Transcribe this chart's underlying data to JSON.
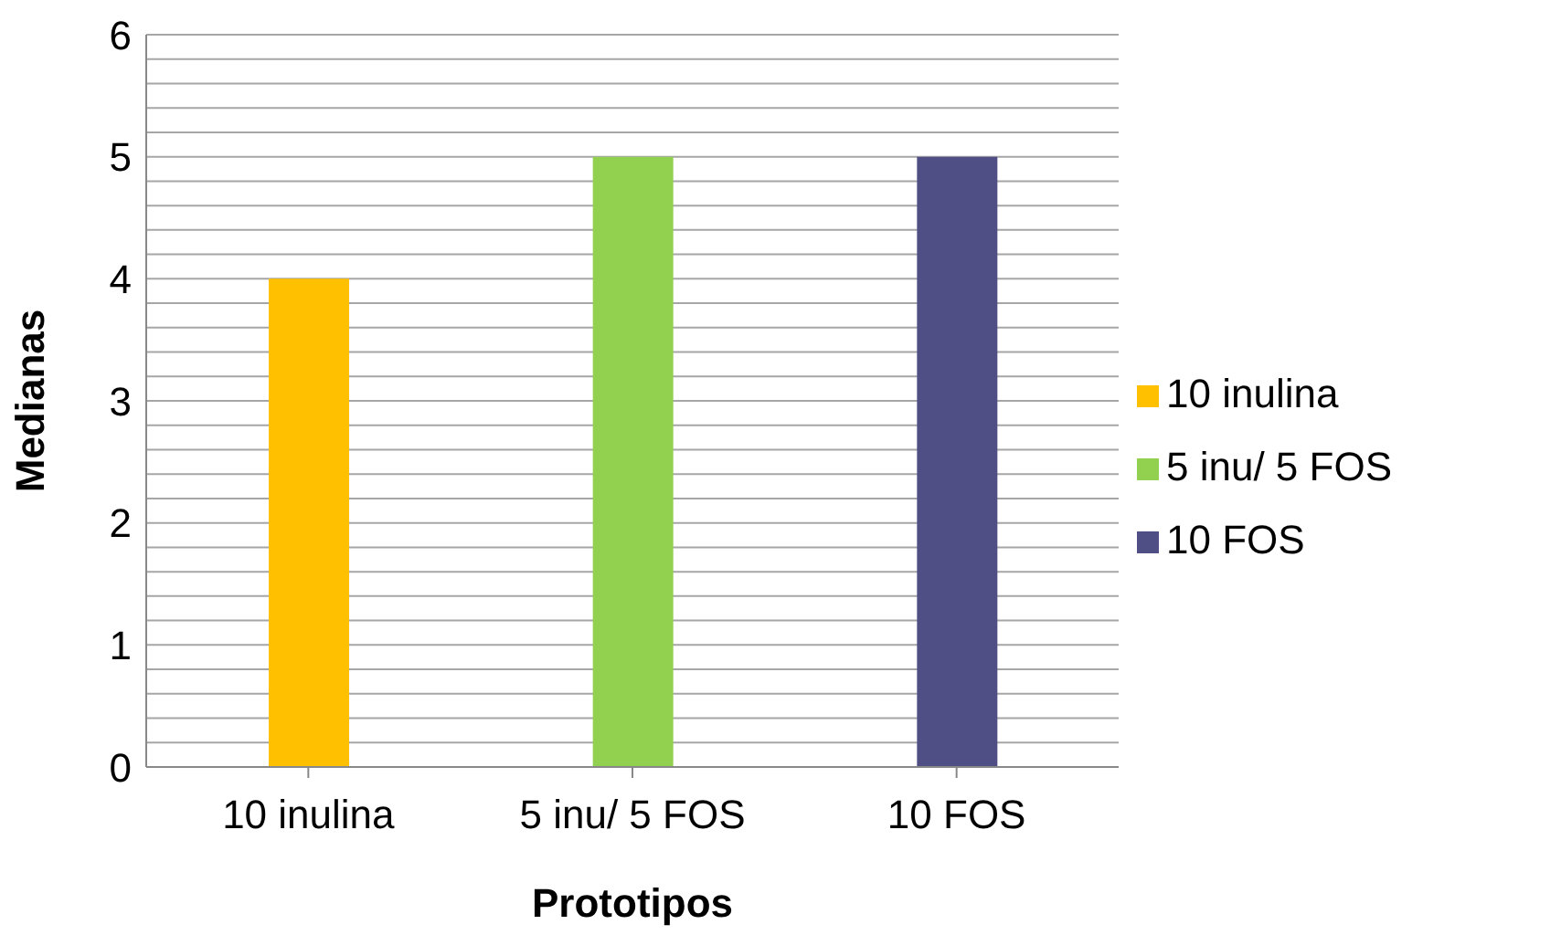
{
  "chart_data": {
    "type": "bar",
    "xlabel": "Prototipos",
    "ylabel": "Medianas",
    "categories": [
      "10 inulina",
      "5 inu/ 5 FOS",
      "10 FOS"
    ],
    "stacked": true,
    "series": [
      {
        "name": "10 inulina",
        "color": "#ffc000",
        "values": [
          4,
          null,
          null
        ]
      },
      {
        "name": "5 inu/ 5 FOS",
        "color": "#92d050",
        "values": [
          null,
          5,
          null
        ]
      },
      {
        "name": "10 FOS",
        "color": "#4f4f86",
        "values": [
          null,
          null,
          5
        ]
      }
    ],
    "ylim": [
      0,
      6
    ],
    "yticks": [
      0,
      {
        "value": 0.2,
        "label": null
      },
      {
        "value": 0.4,
        "label": null
      },
      {
        "value": 0.6,
        "label": null
      },
      {
        "value": 0.8,
        "label": null
      },
      1,
      {
        "value": 1.2,
        "label": null
      },
      {
        "value": 1.4,
        "label": null
      },
      {
        "value": 1.6,
        "label": null
      },
      {
        "value": 1.8,
        "label": null
      },
      2,
      {
        "value": 2.2,
        "label": null
      },
      {
        "value": 2.4,
        "label": null
      },
      {
        "value": 2.6,
        "label": null
      },
      {
        "value": 2.8,
        "label": null
      },
      3,
      {
        "value": 3.2,
        "label": null
      },
      {
        "value": 3.4,
        "label": null
      },
      {
        "value": 3.6,
        "label": null
      },
      {
        "value": 3.8,
        "label": null
      },
      4,
      {
        "value": 4.2,
        "label": null
      },
      {
        "value": 4.4,
        "label": null
      },
      {
        "value": 4.6,
        "label": null
      },
      {
        "value": 4.8,
        "label": null
      },
      5,
      {
        "value": 5.2,
        "label": null
      },
      {
        "value": 5.4,
        "label": null
      },
      {
        "value": 5.6,
        "label": null
      },
      {
        "value": 5.8,
        "label": null
      },
      6
    ],
    "grid": true,
    "legend": "right"
  }
}
